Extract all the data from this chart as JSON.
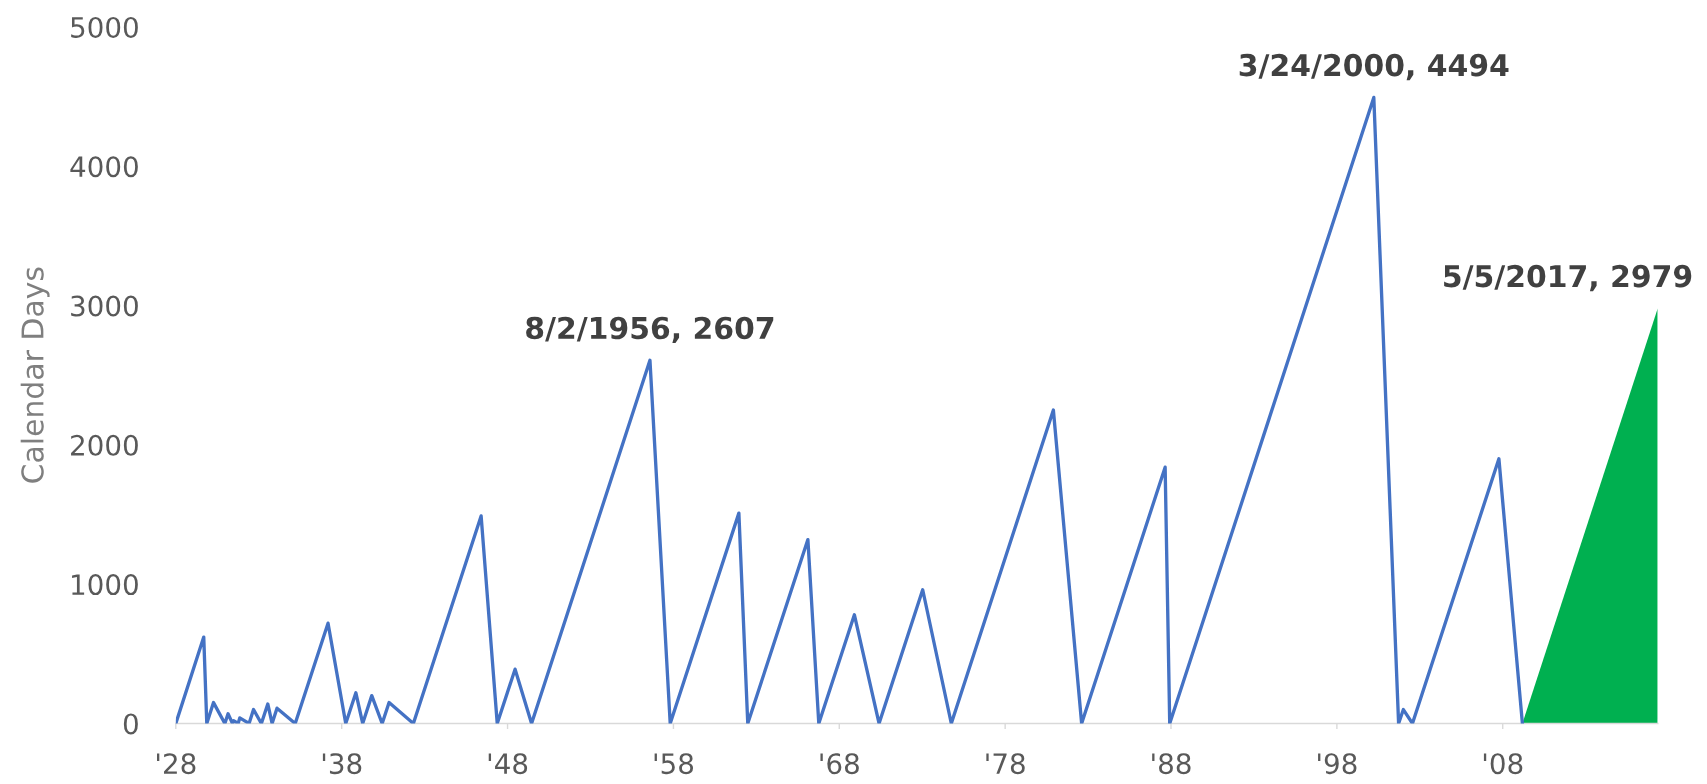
{
  "chart_data": {
    "type": "line",
    "ylabel": "Calendar Days",
    "xlim": [
      "1928",
      "2017-05-05"
    ],
    "ylim": [
      0,
      5000
    ],
    "xticks": [
      {
        "value": "1928",
        "label": "'28"
      },
      {
        "value": "1938",
        "label": "'38"
      },
      {
        "value": "1948",
        "label": "'48"
      },
      {
        "value": "1958",
        "label": "'58"
      },
      {
        "value": "1968",
        "label": "'68"
      },
      {
        "value": "1978",
        "label": "'78"
      },
      {
        "value": "1988",
        "label": "'88"
      },
      {
        "value": "1998",
        "label": "'98"
      },
      {
        "value": "2008",
        "label": "'08"
      }
    ],
    "yticks": [
      0,
      1000,
      2000,
      3000,
      4000,
      5000
    ],
    "series": [
      {
        "color": "#4472c4",
        "x": [
          "1928-01-01",
          "1929-09-07",
          "1929-11-13",
          "1930-04-10",
          "1930-12-16",
          "1931-02-24",
          "1931-06-02",
          "1931-06-26",
          "1931-10-05",
          "1931-11-09",
          "1932-06-01",
          "1932-09-07",
          "1933-02-27",
          "1933-07-18",
          "1933-10-21",
          "1934-02-06",
          "1935-03-14",
          "1937-03-06",
          "1938-03-31",
          "1938-11-09",
          "1939-04-08",
          "1939-10-25",
          "1940-06-10",
          "1940-11-09",
          "1942-04-28",
          "1946-05-29",
          "1947-05-19",
          "1948-06-15",
          "1949-06-13",
          "1956-08-02",
          "1957-10-22",
          "1961-12-12",
          "1962-06-26",
          "1966-02-09",
          "1966-10-07",
          "1968-11-29",
          "1970-05-26",
          "1973-01-11",
          "1974-10-03",
          "1980-11-28",
          "1982-08-12",
          "1987-08-25",
          "1987-12-04",
          "2000-03-24",
          "2001-09-21",
          "2002-01-04",
          "2002-07-23",
          "2007-10-09",
          "2009-03-09"
        ],
        "values": [
          0,
          620,
          0,
          150,
          0,
          70,
          0,
          20,
          0,
          40,
          0,
          100,
          0,
          140,
          0,
          110,
          0,
          720,
          0,
          220,
          0,
          200,
          0,
          150,
          0,
          1490,
          0,
          390,
          0,
          2607,
          0,
          1510,
          0,
          1320,
          0,
          780,
          0,
          960,
          0,
          2250,
          0,
          1840,
          0,
          4494,
          0,
          100,
          0,
          1900,
          0
        ]
      },
      {
        "type": "area",
        "color": "#00b050",
        "x": [
          "2009-03-09",
          "2017-05-05"
        ],
        "values": [
          0,
          2979
        ]
      }
    ],
    "annotations": [
      {
        "text": "8/2/1956, 2607",
        "x": "1956-08-02",
        "y": 2607
      },
      {
        "text": "3/24/2000, 4494",
        "x": "2000-03-24",
        "y": 4494
      },
      {
        "text": "5/5/2017, 2979",
        "x": "2017-05-05",
        "y": 2979
      }
    ]
  }
}
